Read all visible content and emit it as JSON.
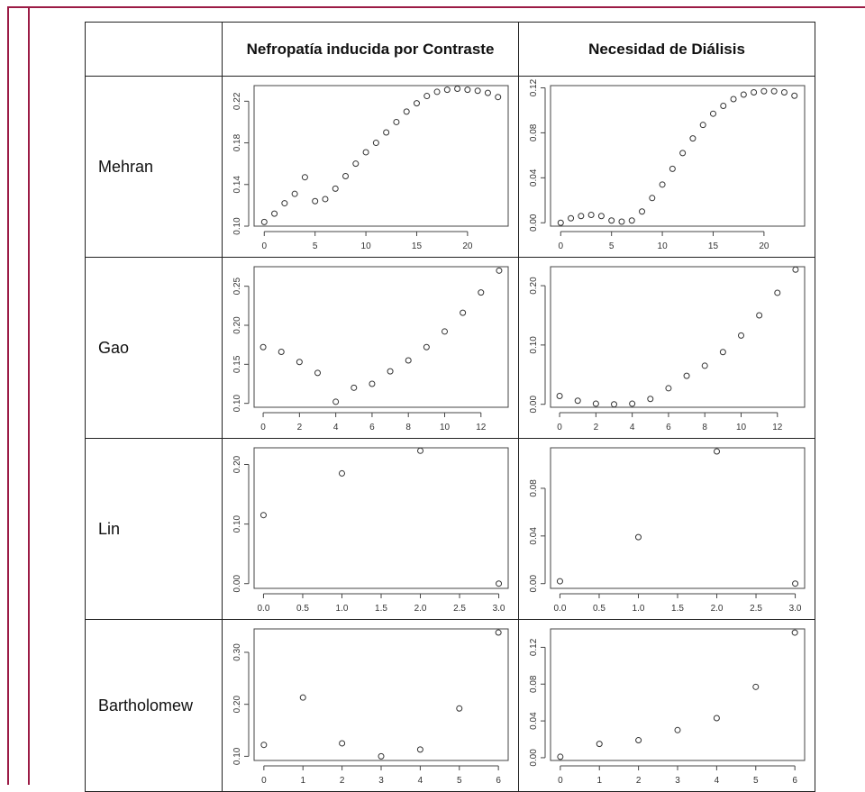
{
  "colors": {
    "frame": "#9b1b45",
    "border": "#222222",
    "axis": "#444444",
    "point": "#333333"
  },
  "table": {
    "columns": [
      "Nefropatía inducida por Contraste",
      "Necesidad de Diálisis"
    ],
    "rows": [
      "Mehran",
      "Gao",
      "Lin",
      "Bartholomew"
    ]
  },
  "chart_data": [
    {
      "row": "Mehran",
      "column": "Nefropatía inducida por Contraste",
      "type": "scatter",
      "x": [
        0,
        1,
        2,
        3,
        4,
        5,
        6,
        7,
        8,
        9,
        10,
        11,
        12,
        13,
        14,
        15,
        16,
        17,
        18,
        19,
        20,
        21,
        22,
        23
      ],
      "y": [
        0.104,
        0.112,
        0.122,
        0.131,
        0.147,
        0.124,
        0.126,
        0.136,
        0.148,
        0.16,
        0.171,
        0.18,
        0.19,
        0.2,
        0.21,
        0.218,
        0.225,
        0.229,
        0.231,
        0.232,
        0.231,
        0.23,
        0.228,
        0.224
      ],
      "xlim": [
        -1,
        24
      ],
      "ylim": [
        0.1,
        0.235
      ],
      "xticks": [
        0,
        5,
        10,
        15,
        20
      ],
      "yticks": [
        0.1,
        0.14,
        0.18,
        0.22
      ],
      "xtick_labels": [
        "0",
        "5",
        "10",
        "15",
        "20"
      ],
      "ytick_labels": [
        "0.10",
        "0.14",
        "0.18",
        "0.22"
      ]
    },
    {
      "row": "Mehran",
      "column": "Necesidad de Diálisis",
      "type": "scatter",
      "x": [
        0,
        1,
        2,
        3,
        4,
        5,
        6,
        7,
        8,
        9,
        10,
        11,
        12,
        13,
        14,
        15,
        16,
        17,
        18,
        19,
        20,
        21,
        22,
        23
      ],
      "y": [
        0.0,
        0.004,
        0.006,
        0.007,
        0.006,
        0.002,
        0.001,
        0.002,
        0.01,
        0.022,
        0.034,
        0.048,
        0.062,
        0.075,
        0.087,
        0.097,
        0.104,
        0.11,
        0.114,
        0.116,
        0.117,
        0.117,
        0.116,
        0.113
      ],
      "xlim": [
        -1,
        24
      ],
      "ylim": [
        -0.003,
        0.122
      ],
      "xticks": [
        0,
        5,
        10,
        15,
        20
      ],
      "yticks": [
        0.0,
        0.04,
        0.08,
        0.12
      ],
      "xtick_labels": [
        "0",
        "5",
        "10",
        "15",
        "20"
      ],
      "ytick_labels": [
        "0.00",
        "0.04",
        "0.08",
        "0.12"
      ]
    },
    {
      "row": "Gao",
      "column": "Nefropatía inducida por Contraste",
      "type": "scatter",
      "x": [
        0,
        1,
        2,
        3,
        4,
        5,
        6,
        7,
        8,
        9,
        10,
        11,
        12,
        13
      ],
      "y": [
        0.172,
        0.166,
        0.153,
        0.139,
        0.102,
        0.12,
        0.125,
        0.141,
        0.155,
        0.172,
        0.192,
        0.216,
        0.242,
        0.27
      ],
      "xlim": [
        -0.5,
        13.5
      ],
      "ylim": [
        0.095,
        0.275
      ],
      "xticks": [
        0,
        2,
        4,
        6,
        8,
        10,
        12
      ],
      "yticks": [
        0.1,
        0.15,
        0.2,
        0.25
      ],
      "xtick_labels": [
        "0",
        "2",
        "4",
        "6",
        "8",
        "10",
        "12"
      ],
      "ytick_labels": [
        "0.10",
        "0.15",
        "0.20",
        "0.25"
      ]
    },
    {
      "row": "Gao",
      "column": "Necesidad de Diálisis",
      "type": "scatter",
      "x": [
        0,
        1,
        2,
        3,
        4,
        5,
        6,
        7,
        8,
        9,
        10,
        11,
        12,
        13
      ],
      "y": [
        0.014,
        0.006,
        0.001,
        0.0,
        0.001,
        0.009,
        0.027,
        0.048,
        0.065,
        0.088,
        0.116,
        0.15,
        0.188,
        0.227
      ],
      "xlim": [
        -0.5,
        13.5
      ],
      "ylim": [
        -0.005,
        0.232
      ],
      "xticks": [
        0,
        2,
        4,
        6,
        8,
        10,
        12
      ],
      "yticks": [
        0.0,
        0.1,
        0.2
      ],
      "xtick_labels": [
        "0",
        "2",
        "4",
        "6",
        "8",
        "10",
        "12"
      ],
      "ytick_labels": [
        "0.00",
        "0.10",
        "0.20"
      ]
    },
    {
      "row": "Lin",
      "column": "Nefropatía inducida por Contraste",
      "type": "scatter",
      "x": [
        0,
        1,
        2,
        3
      ],
      "y": [
        0.115,
        0.185,
        0.223,
        0.0
      ],
      "xlim": [
        -0.12,
        3.12
      ],
      "ylim": [
        -0.008,
        0.228
      ],
      "xticks": [
        0,
        0.5,
        1,
        1.5,
        2,
        2.5,
        3
      ],
      "yticks": [
        0.0,
        0.1,
        0.2
      ],
      "xtick_labels": [
        "0.0",
        "0.5",
        "1.0",
        "1.5",
        "2.0",
        "2.5",
        "3.0"
      ],
      "ytick_labels": [
        "0.00",
        "0.10",
        "0.20"
      ]
    },
    {
      "row": "Lin",
      "column": "Necesidad de Diálisis",
      "type": "scatter",
      "x": [
        0,
        1,
        2,
        3
      ],
      "y": [
        0.002,
        0.039,
        0.111,
        0.0
      ],
      "xlim": [
        -0.12,
        3.12
      ],
      "ylim": [
        -0.004,
        0.114
      ],
      "xticks": [
        0,
        0.5,
        1,
        1.5,
        2,
        2.5,
        3
      ],
      "yticks": [
        0.0,
        0.04,
        0.08
      ],
      "xtick_labels": [
        "0.0",
        "0.5",
        "1.0",
        "1.5",
        "2.0",
        "2.5",
        "3.0"
      ],
      "ytick_labels": [
        "0.00",
        "0.04",
        "0.08"
      ]
    },
    {
      "row": "Bartholomew",
      "column": "Nefropatía inducida por Contraste",
      "type": "scatter",
      "x": [
        0,
        1,
        2,
        3,
        4,
        5,
        6
      ],
      "y": [
        0.122,
        0.213,
        0.125,
        0.1,
        0.113,
        0.192,
        0.338
      ],
      "xlim": [
        -0.25,
        6.25
      ],
      "ylim": [
        0.092,
        0.345
      ],
      "xticks": [
        0,
        1,
        2,
        3,
        4,
        5,
        6
      ],
      "yticks": [
        0.1,
        0.2,
        0.3
      ],
      "xtick_labels": [
        "0",
        "1",
        "2",
        "3",
        "4",
        "5",
        "6"
      ],
      "ytick_labels": [
        "0.10",
        "0.20",
        "0.30"
      ]
    },
    {
      "row": "Bartholomew",
      "column": "Necesidad de Diálisis",
      "type": "scatter",
      "x": [
        0,
        1,
        2,
        3,
        4,
        5,
        6
      ],
      "y": [
        0.001,
        0.015,
        0.019,
        0.03,
        0.043,
        0.077,
        0.136
      ],
      "xlim": [
        -0.25,
        6.25
      ],
      "ylim": [
        -0.003,
        0.14
      ],
      "xticks": [
        0,
        1,
        2,
        3,
        4,
        5,
        6
      ],
      "yticks": [
        0.0,
        0.04,
        0.08,
        0.12
      ],
      "xtick_labels": [
        "0",
        "1",
        "2",
        "3",
        "4",
        "5",
        "6"
      ],
      "ytick_labels": [
        "0.00",
        "0.04",
        "0.08",
        "0.12"
      ]
    }
  ]
}
